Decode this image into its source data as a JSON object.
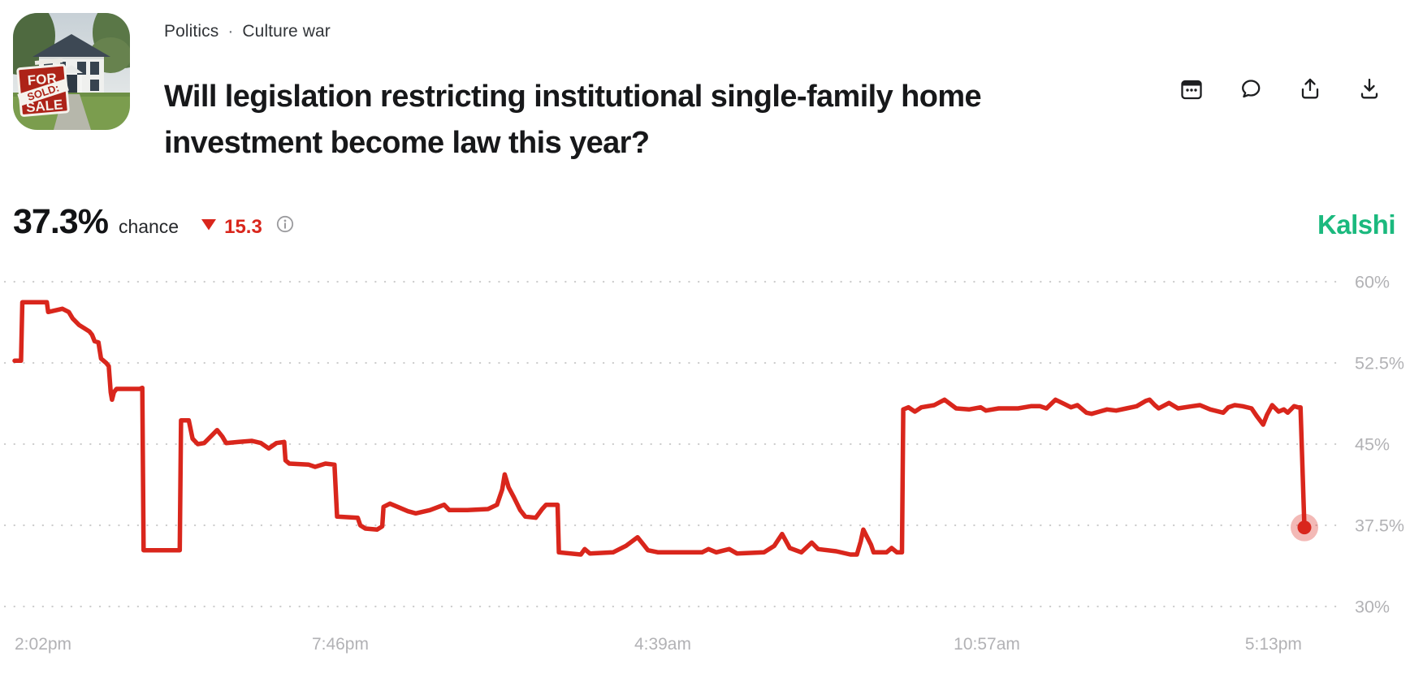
{
  "breadcrumb": {
    "category": "Politics",
    "separator": "·",
    "subcategory": "Culture war"
  },
  "market": {
    "title": "Will legislation restricting institutional single-family home investment become law this year?"
  },
  "thumbnail": {
    "description": "house with for-sale sold sign",
    "sign": {
      "top": "FOR",
      "banner": "SOLD:",
      "bottom": "SALE"
    }
  },
  "actions": {
    "icons": [
      "calendar-icon",
      "comment-icon",
      "share-icon",
      "download-icon"
    ]
  },
  "price": {
    "value": "37.3%",
    "unit_label": "chance",
    "change_value": "15.3",
    "change_direction": "down",
    "change_color": "#d9261c"
  },
  "brand": {
    "name": "Kalshi",
    "color": "#1bb97e"
  },
  "colors": {
    "line_red": "#d9261c",
    "halo": "rgba(217,38,28,0.32)",
    "grid": "#cccccc",
    "axis_text": "#b2b2b5"
  },
  "chart_data": {
    "type": "line",
    "title": "",
    "xlabel": "",
    "ylabel": "",
    "grid": "dotted-horizontal",
    "legend": "none",
    "y_range_gridlines": [
      30,
      60
    ],
    "y_ticks": [
      {
        "label": "60%",
        "value": 60
      },
      {
        "label": "52.5%",
        "value": 52.5
      },
      {
        "label": "45%",
        "value": 45
      },
      {
        "label": "37.5%",
        "value": 37.5
      },
      {
        "label": "30%",
        "value": 30
      }
    ],
    "x_ticks": [
      {
        "label": "2:02pm",
        "pos": 0.0,
        "anchor": "start"
      },
      {
        "label": "7:46pm",
        "pos": 0.2525,
        "anchor": "middle"
      },
      {
        "label": "4:39am",
        "pos": 0.5025,
        "anchor": "middle"
      },
      {
        "label": "10:57am",
        "pos": 0.7538,
        "anchor": "middle"
      },
      {
        "label": "5:13pm",
        "pos": 0.976,
        "anchor": "middle"
      }
    ],
    "end_marker": {
      "pos": 1.0,
      "value": 37.3
    },
    "series": [
      {
        "name": "chance",
        "color": "#d9261c",
        "points": [
          [
            0,
            52.7
          ],
          [
            0.005,
            52.7
          ],
          [
            0.006,
            58.1
          ],
          [
            0.025,
            58.1
          ],
          [
            0.026,
            57.2
          ],
          [
            0.037,
            57.5
          ],
          [
            0.042,
            57.2
          ],
          [
            0.045,
            56.6
          ],
          [
            0.05,
            56
          ],
          [
            0.054,
            55.7
          ],
          [
            0.058,
            55.4
          ],
          [
            0.06,
            55.1
          ],
          [
            0.062,
            54.5
          ],
          [
            0.065,
            54.4
          ],
          [
            0.067,
            52.9
          ],
          [
            0.071,
            52.5
          ],
          [
            0.073,
            52.2
          ],
          [
            0.0745,
            49.8
          ],
          [
            0.0755,
            49.1
          ],
          [
            0.077,
            49.8
          ],
          [
            0.079,
            50.1
          ],
          [
            0.097,
            50.1
          ],
          [
            0.099,
            50.2
          ],
          [
            0.1,
            35.2
          ],
          [
            0.128,
            35.2
          ],
          [
            0.129,
            47.2
          ],
          [
            0.135,
            47.2
          ],
          [
            0.138,
            45.5
          ],
          [
            0.142,
            45
          ],
          [
            0.147,
            45.1
          ],
          [
            0.152,
            45.7
          ],
          [
            0.157,
            46.3
          ],
          [
            0.161,
            45.7
          ],
          [
            0.164,
            45.1
          ],
          [
            0.174,
            45.2
          ],
          [
            0.184,
            45.3
          ],
          [
            0.191,
            45.1
          ],
          [
            0.197,
            44.6
          ],
          [
            0.203,
            45.1
          ],
          [
            0.209,
            45.2
          ],
          [
            0.21,
            43.5
          ],
          [
            0.213,
            43.2
          ],
          [
            0.228,
            43.1
          ],
          [
            0.233,
            42.9
          ],
          [
            0.241,
            43.2
          ],
          [
            0.248,
            43.1
          ],
          [
            0.25,
            38.3
          ],
          [
            0.266,
            38.2
          ],
          [
            0.268,
            37.5
          ],
          [
            0.272,
            37.2
          ],
          [
            0.281,
            37.1
          ],
          [
            0.285,
            37.4
          ],
          [
            0.286,
            39.2
          ],
          [
            0.291,
            39.5
          ],
          [
            0.297,
            39.2
          ],
          [
            0.305,
            38.8
          ],
          [
            0.311,
            38.6
          ],
          [
            0.322,
            38.9
          ],
          [
            0.333,
            39.4
          ],
          [
            0.337,
            38.9
          ],
          [
            0.351,
            38.9
          ],
          [
            0.367,
            39
          ],
          [
            0.374,
            39.4
          ],
          [
            0.378,
            40.8
          ],
          [
            0.38,
            42.2
          ],
          [
            0.383,
            41
          ],
          [
            0.387,
            40.1
          ],
          [
            0.392,
            38.9
          ],
          [
            0.396,
            38.3
          ],
          [
            0.404,
            38.2
          ],
          [
            0.409,
            39
          ],
          [
            0.412,
            39.4
          ],
          [
            0.421,
            39.4
          ],
          [
            0.422,
            35
          ],
          [
            0.439,
            34.8
          ],
          [
            0.442,
            35.3
          ],
          [
            0.446,
            34.9
          ],
          [
            0.464,
            35
          ],
          [
            0.474,
            35.6
          ],
          [
            0.483,
            36.4
          ],
          [
            0.487,
            35.8
          ],
          [
            0.491,
            35.2
          ],
          [
            0.499,
            35
          ],
          [
            0.533,
            35
          ],
          [
            0.538,
            35.3
          ],
          [
            0.544,
            35
          ],
          [
            0.554,
            35.3
          ],
          [
            0.56,
            34.9
          ],
          [
            0.581,
            35
          ],
          [
            0.589,
            35.6
          ],
          [
            0.595,
            36.7
          ],
          [
            0.601,
            35.4
          ],
          [
            0.61,
            35
          ],
          [
            0.618,
            35.9
          ],
          [
            0.623,
            35.3
          ],
          [
            0.637,
            35.1
          ],
          [
            0.648,
            34.8
          ],
          [
            0.653,
            34.8
          ],
          [
            0.656,
            36
          ],
          [
            0.658,
            37.1
          ],
          [
            0.661,
            36.4
          ],
          [
            0.664,
            35.7
          ],
          [
            0.666,
            35
          ],
          [
            0.676,
            35
          ],
          [
            0.68,
            35.4
          ],
          [
            0.684,
            35
          ],
          [
            0.688,
            35
          ],
          [
            0.689,
            48.2
          ],
          [
            0.693,
            48.4
          ],
          [
            0.698,
            48
          ],
          [
            0.703,
            48.4
          ],
          [
            0.713,
            48.6
          ],
          [
            0.721,
            49.1
          ],
          [
            0.73,
            48.3
          ],
          [
            0.74,
            48.2
          ],
          [
            0.749,
            48.4
          ],
          [
            0.753,
            48.1
          ],
          [
            0.763,
            48.3
          ],
          [
            0.778,
            48.3
          ],
          [
            0.788,
            48.5
          ],
          [
            0.795,
            48.5
          ],
          [
            0.8,
            48.3
          ],
          [
            0.807,
            49.1
          ],
          [
            0.814,
            48.7
          ],
          [
            0.819,
            48.4
          ],
          [
            0.824,
            48.6
          ],
          [
            0.831,
            47.9
          ],
          [
            0.835,
            47.8
          ],
          [
            0.841,
            48
          ],
          [
            0.847,
            48.2
          ],
          [
            0.854,
            48.1
          ],
          [
            0.862,
            48.3
          ],
          [
            0.87,
            48.5
          ],
          [
            0.877,
            49
          ],
          [
            0.88,
            49.1
          ],
          [
            0.884,
            48.6
          ],
          [
            0.887,
            48.3
          ],
          [
            0.895,
            48.8
          ],
          [
            0.902,
            48.3
          ],
          [
            0.913,
            48.5
          ],
          [
            0.919,
            48.6
          ],
          [
            0.927,
            48.2
          ],
          [
            0.937,
            47.9
          ],
          [
            0.941,
            48.4
          ],
          [
            0.946,
            48.6
          ],
          [
            0.952,
            48.5
          ],
          [
            0.959,
            48.3
          ],
          [
            0.963,
            47.6
          ],
          [
            0.968,
            46.8
          ],
          [
            0.971,
            47.7
          ],
          [
            0.975,
            48.6
          ],
          [
            0.98,
            48
          ],
          [
            0.984,
            48.2
          ],
          [
            0.987,
            47.9
          ],
          [
            0.992,
            48.5
          ],
          [
            0.995,
            48.4
          ],
          [
            0.997,
            48.4
          ],
          [
            1,
            37.3
          ]
        ]
      }
    ]
  }
}
